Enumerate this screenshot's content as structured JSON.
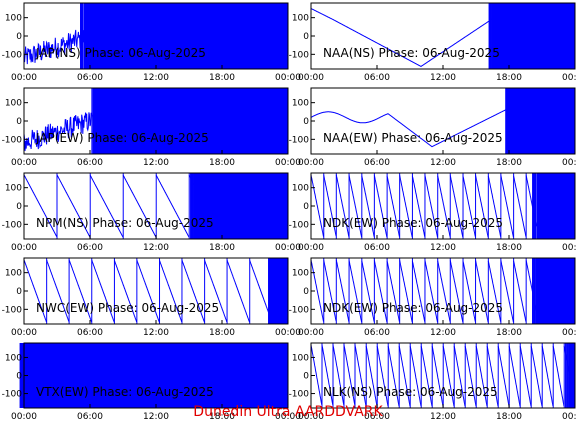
{
  "footer": "Dunedin Ultra AARDDVARK",
  "colors": {
    "trace": "#0000ff",
    "footer": "#e00000",
    "frame": "#000000"
  },
  "chart_data": [
    {
      "type": "line",
      "title": "JAP(NS) Phase: 06-Aug-2025",
      "x_ticks": [
        "00:00",
        "06:00",
        "12:00",
        "18:00",
        "00:00"
      ],
      "y_ticks": [
        "100",
        "0",
        "-100"
      ],
      "ylim": [
        -180,
        180
      ],
      "xlim": [
        0,
        24
      ],
      "pattern": "saturated",
      "sat_start": 5.5,
      "note_noise_before": true
    },
    {
      "type": "line",
      "title": "NAA(NS) Phase: 06-Aug-2025",
      "x_ticks": [
        "00:00",
        "06:00",
        "12:00",
        "18:00",
        "00:00"
      ],
      "y_ticks": [
        "100",
        "0",
        "-100"
      ],
      "ylim": [
        -180,
        180
      ],
      "xlim": [
        0,
        24
      ],
      "pattern": "dip",
      "sat_start": 16.5
    },
    {
      "type": "line",
      "title": "JAP(EW) Phase: 06-Aug-2025",
      "x_ticks": [
        "00:00",
        "06:00",
        "12:00",
        "18:00",
        "00:00"
      ],
      "y_ticks": [
        "100",
        "0",
        "-100"
      ],
      "ylim": [
        -180,
        180
      ],
      "xlim": [
        0,
        24
      ],
      "pattern": "saturated",
      "sat_start": 6.5
    },
    {
      "type": "line",
      "title": "NAA(EW) Phase: 06-Aug-2025",
      "x_ticks": [
        "00:00",
        "06:00",
        "12:00",
        "18:00",
        "00:00"
      ],
      "y_ticks": [
        "100",
        "0",
        "-100"
      ],
      "ylim": [
        -180,
        180
      ],
      "xlim": [
        0,
        24
      ],
      "pattern": "dip2",
      "sat_start": 18
    },
    {
      "type": "line",
      "title": "NPM(NS) Phase: 06-Aug-2025",
      "x_ticks": [
        "00:00",
        "06:00",
        "12:00",
        "18:00",
        "00:00"
      ],
      "y_ticks": [
        "100",
        "0",
        "-100"
      ],
      "ylim": [
        -180,
        180
      ],
      "xlim": [
        0,
        24
      ],
      "pattern": "sawslow",
      "sat_start": 15.5
    },
    {
      "type": "line",
      "title": "NDK(EW) Phase: 06-Aug-2025",
      "x_ticks": [
        "00:00",
        "06:00",
        "12:00",
        "18:00",
        "00:00"
      ],
      "y_ticks": [
        "100",
        "0",
        "-100"
      ],
      "ylim": [
        -180,
        180
      ],
      "xlim": [
        0,
        24
      ],
      "pattern": "sawfast",
      "sat_start": 20.5
    },
    {
      "type": "line",
      "title": "NWC(EW) Phase: 06-Aug-2025",
      "x_ticks": [
        "00:00",
        "06:00",
        "12:00",
        "18:00",
        "00:00"
      ],
      "y_ticks": [
        "100",
        "0",
        "-100"
      ],
      "ylim": [
        -180,
        180
      ],
      "xlim": [
        0,
        24
      ],
      "pattern": "sawmed",
      "sat_start": 22.5
    },
    {
      "type": "line",
      "title": "NDK(EW) Phase: 06-Aug-2025",
      "x_ticks": [
        "00:00",
        "06:00",
        "12:00",
        "18:00",
        "00:00"
      ],
      "y_ticks": [
        "100",
        "0",
        "-100"
      ],
      "ylim": [
        -180,
        180
      ],
      "xlim": [
        0,
        24
      ],
      "pattern": "sawfast",
      "sat_start": 20.5
    },
    {
      "type": "line",
      "title": "VTX(EW) Phase: 06-Aug-2025",
      "x_ticks": [
        "00:00",
        "06:00",
        "12:00",
        "18:00",
        "00:00"
      ],
      "y_ticks": [
        "100",
        "0",
        "-100"
      ],
      "ylim": [
        -180,
        180
      ],
      "xlim": [
        0,
        24
      ],
      "pattern": "saturated",
      "sat_start": 0
    },
    {
      "type": "line",
      "title": "NLK(NS) Phase: 06-Aug-2025",
      "x_ticks": [
        "00:00",
        "06:00",
        "12:00",
        "18:00",
        "00:00"
      ],
      "y_ticks": [
        "100",
        "0",
        "-100"
      ],
      "ylim": [
        -180,
        180
      ],
      "xlim": [
        0,
        24
      ],
      "pattern": "sawsteep",
      "sat_start": 23.5
    }
  ]
}
